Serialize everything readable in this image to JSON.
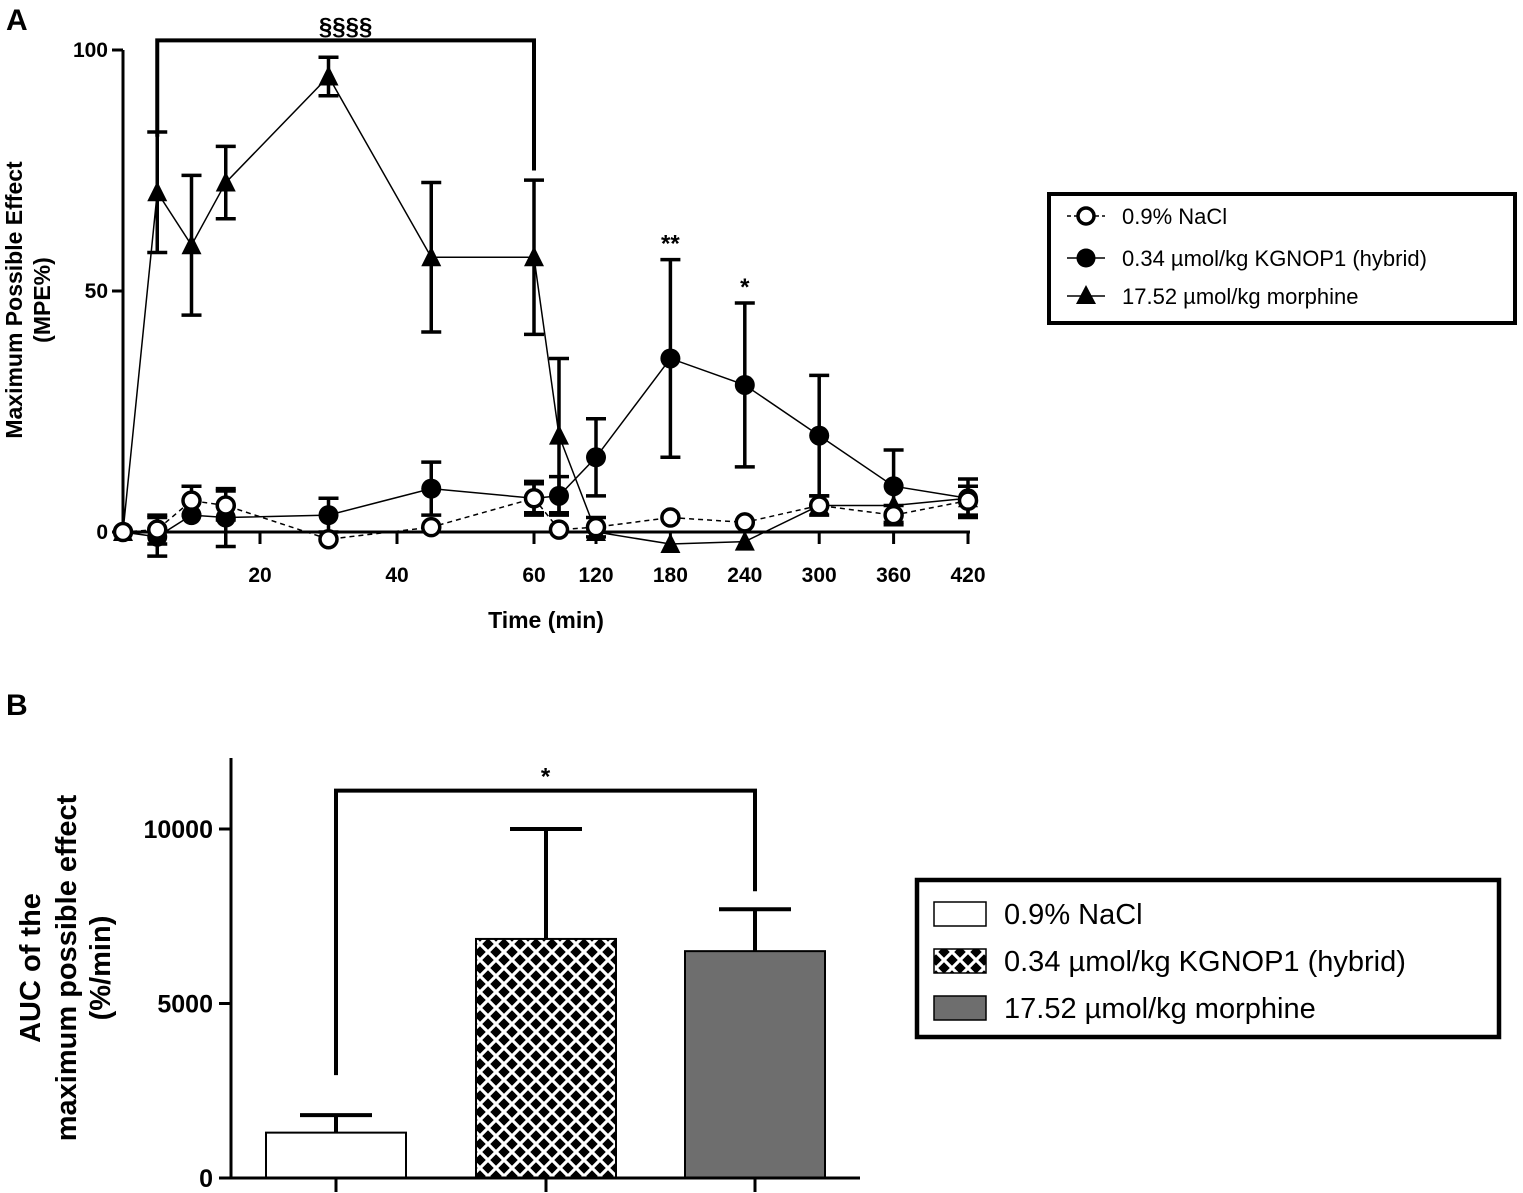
{
  "colors": {
    "ink": "#000000",
    "paper": "#ffffff",
    "morphine_bar": "#6e6e6e"
  },
  "panels": {
    "a_label": "A",
    "b_label": "B"
  },
  "chart_data": [
    {
      "type": "line",
      "panel": "A",
      "ylabel_line1": "Maximum Possible Effect",
      "ylabel_line2": "(MPE%)",
      "xlabel": "Time (min)",
      "ylim": [
        0,
        100
      ],
      "yticks": [
        "0",
        "50",
        "100"
      ],
      "x_segments": [
        {
          "range": [
            0,
            60
          ],
          "ticks": [
            "20",
            "40",
            "60"
          ]
        },
        {
          "range": [
            120,
            420
          ],
          "ticks": [
            "120",
            "180",
            "240",
            "300",
            "360",
            "420"
          ]
        }
      ],
      "legend_position": "right",
      "series": [
        {
          "name": "0.9% NaCl",
          "marker": "open-circle",
          "line": "dashed",
          "x": [
            0,
            5,
            10,
            15,
            30,
            45,
            60,
            90,
            120,
            180,
            240,
            300,
            360,
            420
          ],
          "y": [
            0,
            0.5,
            6.5,
            5.5,
            -1.5,
            1,
            7,
            0.5,
            1,
            3,
            2,
            5.5,
            3.5,
            6.5
          ],
          "err": [
            0,
            3,
            3,
            3,
            0,
            0,
            3,
            0,
            2,
            0,
            0,
            2,
            2,
            3
          ]
        },
        {
          "name": "0.34 µmol/kg KGNOP1 (hybrid)",
          "marker": "filled-circle",
          "line": "solid",
          "x": [
            0,
            5,
            10,
            15,
            30,
            45,
            60,
            90,
            120,
            180,
            240,
            300,
            360,
            420
          ],
          "y": [
            0,
            -1,
            3.5,
            3,
            3.5,
            9,
            7,
            7.5,
            15.5,
            36,
            30.5,
            20,
            9.5,
            7
          ],
          "err": [
            0,
            4,
            0,
            6,
            3.5,
            5.5,
            3.5,
            4,
            8,
            20.5,
            17,
            12.5,
            7.5,
            4
          ]
        },
        {
          "name": "17.52 µmol/kg morphine",
          "marker": "filled-triangle",
          "line": "solid",
          "x": [
            0,
            5,
            10,
            15,
            30,
            45,
            60,
            90,
            120,
            180,
            240,
            300,
            360,
            420
          ],
          "y": [
            0,
            70.5,
            59.5,
            72.5,
            94.5,
            57,
            57,
            20,
            0,
            -2.5,
            -2,
            5.5,
            5.5,
            7
          ],
          "err": [
            0,
            12.5,
            14.5,
            7.5,
            4,
            15.5,
            16,
            16,
            0,
            0,
            0,
            0,
            0,
            0
          ]
        }
      ],
      "annotations": [
        {
          "text": "§§§§",
          "x_from": 5,
          "x_to": 60,
          "y": 102
        },
        {
          "text": "**",
          "x": 180
        },
        {
          "text": "*",
          "x": 240
        }
      ]
    },
    {
      "type": "bar",
      "panel": "B",
      "ylabel_line1": "AUC of the",
      "ylabel_line2": "maximum possible effect",
      "ylabel_line3": "(%/min)",
      "ylim": [
        0,
        12000
      ],
      "yticks": [
        "0",
        "5000",
        "10000"
      ],
      "categories": [
        "0.9% NaCl",
        "0.34 µmol/kg KGNOP1 (hybrid)",
        "17.52 µmol/kg morphine"
      ],
      "values": [
        1300,
        6850,
        6500
      ],
      "err": [
        500,
        3150,
        1200
      ],
      "fills": [
        "white",
        "crosshatch",
        "gray"
      ],
      "legend_position": "right",
      "annotations": [
        {
          "text": "*",
          "from_category": 0,
          "to_category": 2,
          "y": 11100
        }
      ]
    }
  ]
}
